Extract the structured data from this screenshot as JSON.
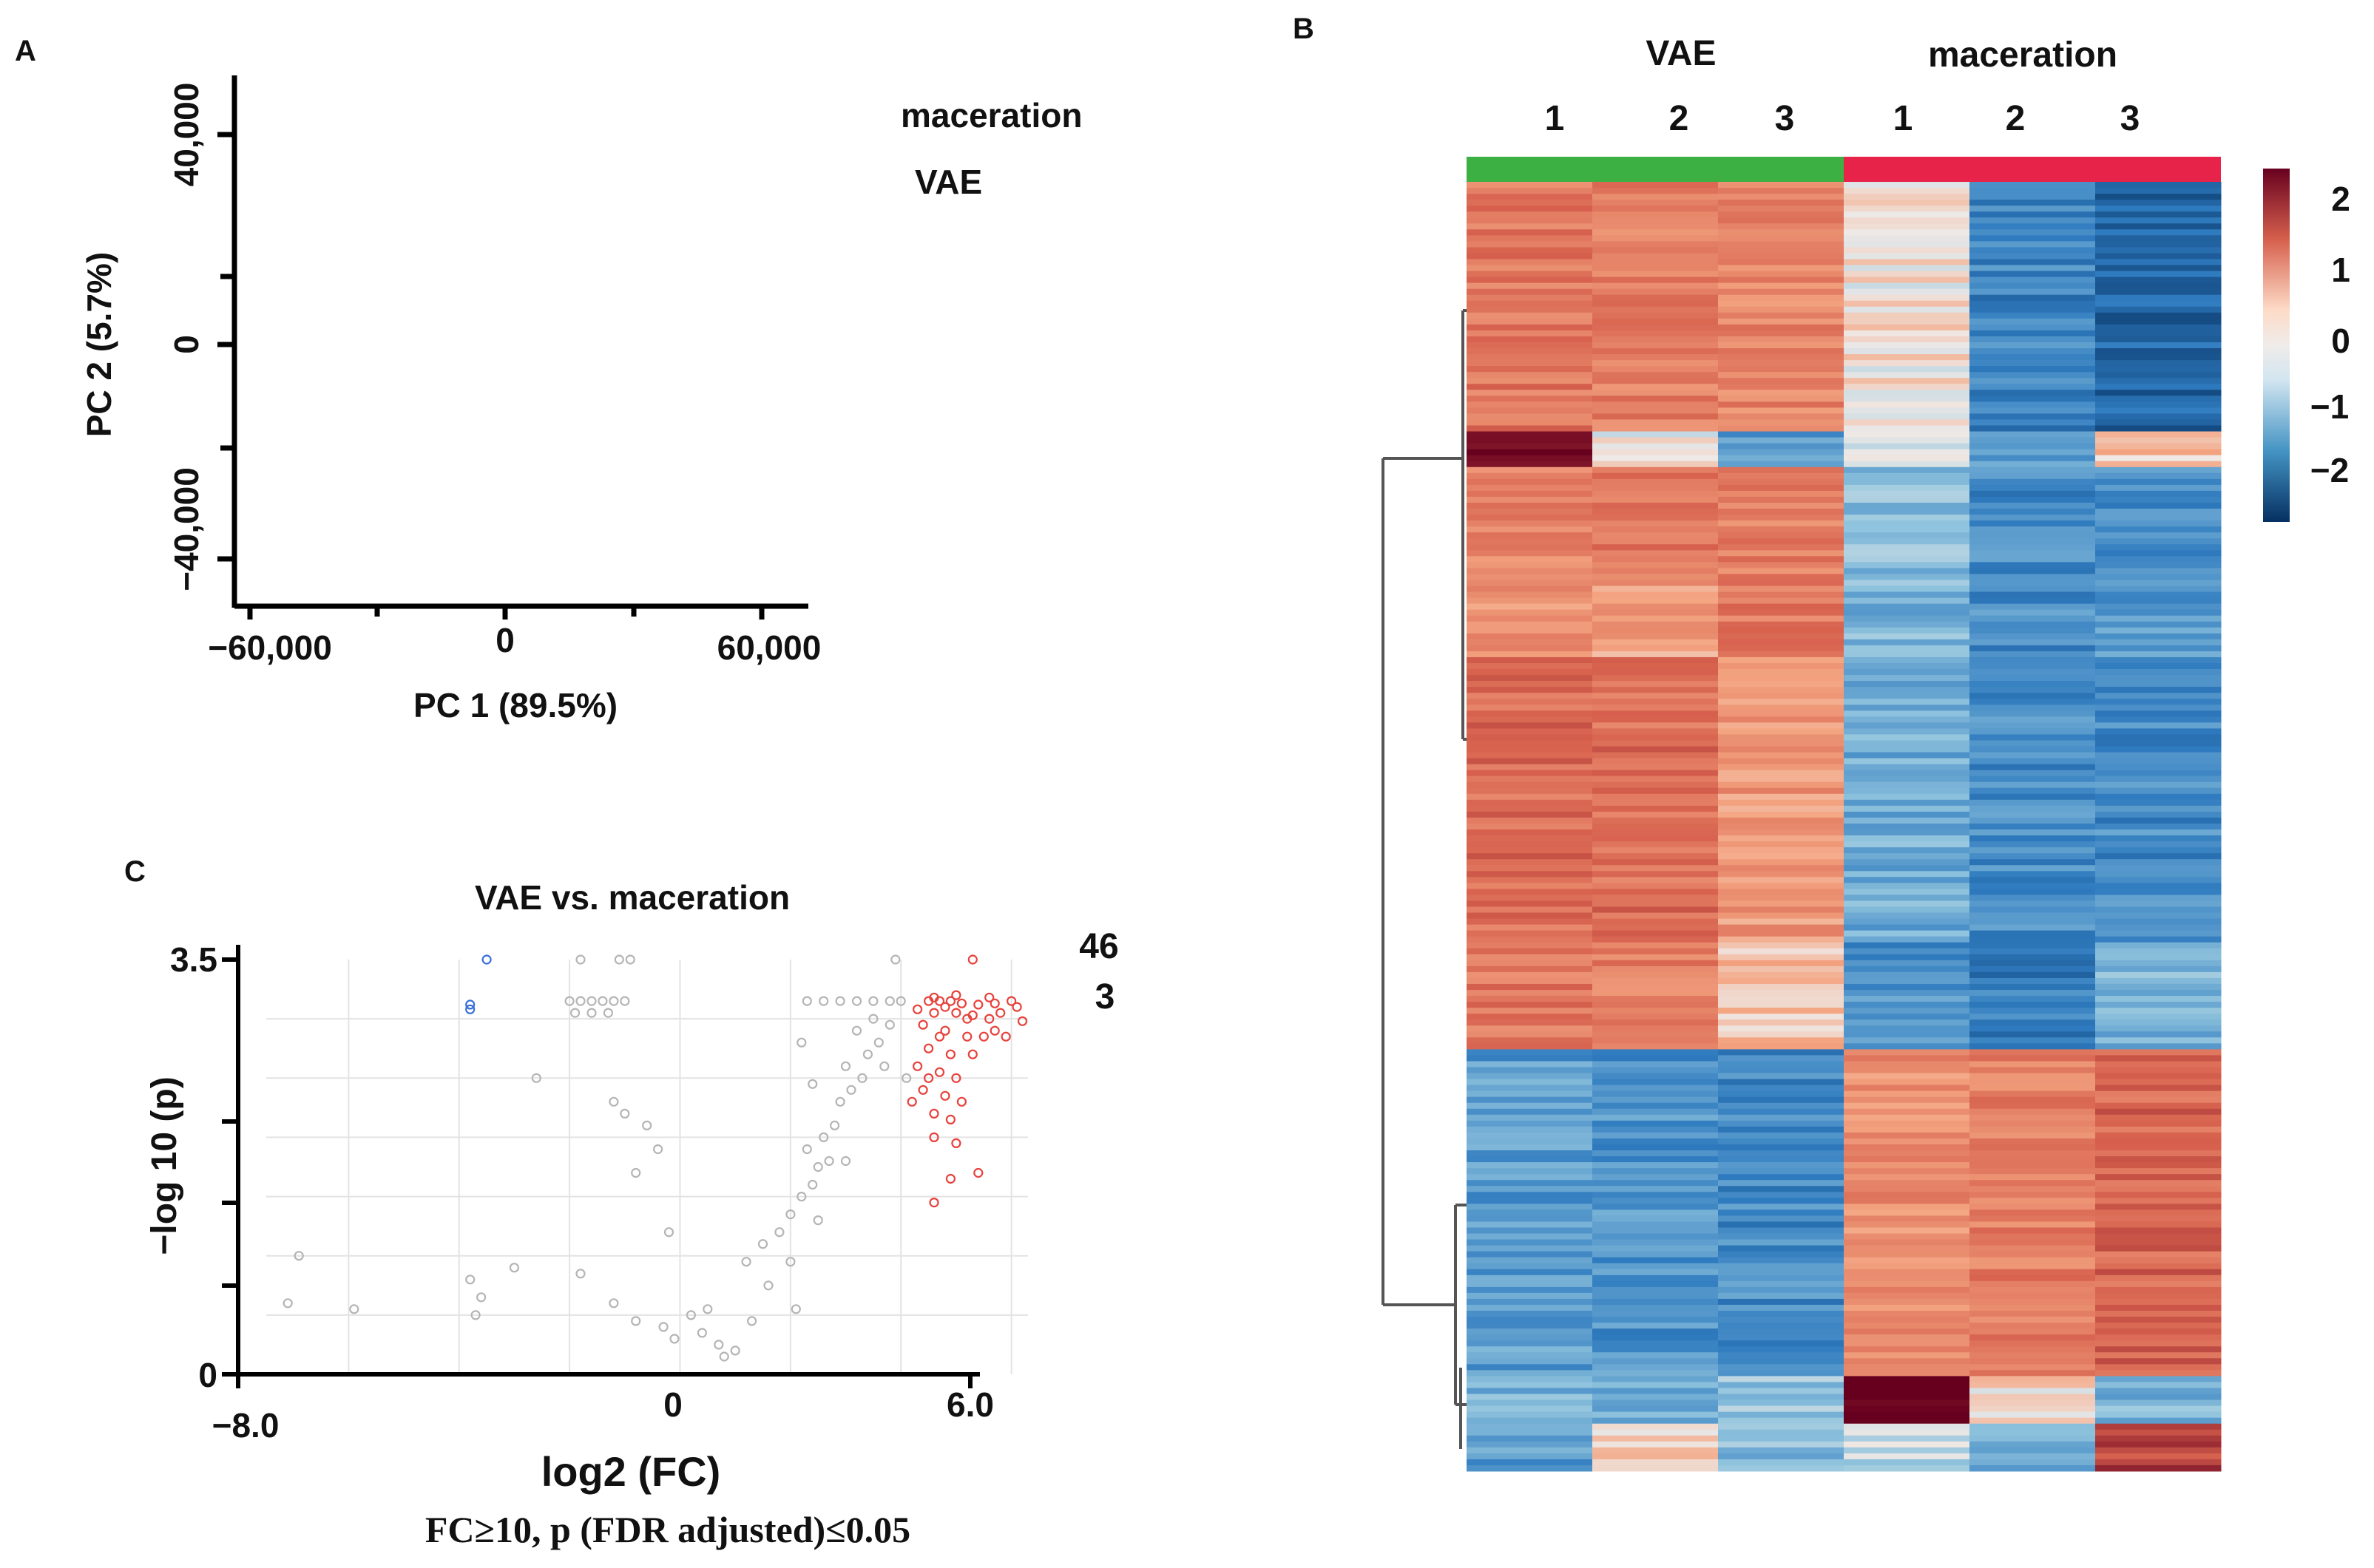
{
  "panel_labels": {
    "a": "A",
    "b": "B",
    "c": "C"
  },
  "chart_data": [
    {
      "id": "pca",
      "type": "scatter",
      "xlabel": "PC 1 (89.5%)",
      "ylabel": "PC 2 (5.7%)",
      "x_ticks": [
        "−60,000",
        "0",
        "60,000"
      ],
      "y_ticks": [
        "40,000",
        "0",
        "−40,000"
      ],
      "xlim": [
        -70000,
        70000
      ],
      "ylim": [
        -50000,
        50000
      ],
      "legend": [
        "maceration",
        "VAE"
      ],
      "points": []
    },
    {
      "id": "heatmap",
      "type": "heatmap",
      "group_labels": [
        "VAE",
        "maceration"
      ],
      "group_colors": [
        "#3cb043",
        "#e8234a"
      ],
      "sample_labels": [
        "1",
        "2",
        "3",
        "1",
        "2",
        "3"
      ],
      "colorbar_ticks": [
        "2",
        "1",
        "0",
        "−1",
        "−2"
      ],
      "color_range": [
        -2.5,
        2.5
      ],
      "row_blocks": [
        {
          "rows": 42,
          "values": [
            1.2,
            1.1,
            1.0,
            0.1,
            -1.4,
            -1.8
          ]
        },
        {
          "rows": 6,
          "values": [
            2.4,
            0.0,
            -1.2,
            -0.3,
            -1.2,
            0.3
          ]
        },
        {
          "rows": 18,
          "values": [
            1.0,
            1.3,
            1.1,
            -0.7,
            -1.3,
            -1.2
          ]
        },
        {
          "rows": 14,
          "values": [
            0.9,
            0.7,
            1.2,
            -0.8,
            -1.3,
            -1.1
          ]
        },
        {
          "rows": 48,
          "values": [
            1.3,
            1.3,
            0.8,
            -0.9,
            -1.3,
            -1.3
          ]
        },
        {
          "rows": 18,
          "values": [
            1.2,
            1.1,
            0.4,
            -1.2,
            -1.5,
            -0.8
          ]
        },
        {
          "rows": 55,
          "values": [
            -1.1,
            -1.2,
            -1.3,
            0.9,
            1.1,
            1.4
          ]
        },
        {
          "rows": 8,
          "values": [
            -0.8,
            -0.9,
            -0.6,
            2.5,
            0.2,
            -0.8
          ]
        },
        {
          "rows": 8,
          "values": [
            -1.1,
            0.2,
            -0.7,
            -0.3,
            -0.8,
            1.8
          ]
        }
      ]
    },
    {
      "id": "volcano",
      "type": "scatter",
      "title": "VAE vs. maceration",
      "xlabel": "log2 (FC)",
      "ylabel": "−log 10 (p)",
      "x_ticks": [
        "−8.0",
        "0",
        "6.0"
      ],
      "y_ticks": [
        "3.5",
        "0"
      ],
      "xlim": [
        -8,
        6.3
      ],
      "ylim": [
        0,
        3.5
      ],
      "criteria": "FC≥10, p (FDR adjusted)≤0.05",
      "counts": {
        "up": "46",
        "down": "3"
      },
      "colors": {
        "up": "#e8423c",
        "down": "#3a6fd8",
        "ns": "#b5b5b5"
      },
      "points": [
        {
          "x": -3.5,
          "y": 3.5,
          "g": "down"
        },
        {
          "x": -3.8,
          "y": 3.12,
          "g": "down"
        },
        {
          "x": -3.8,
          "y": 3.08,
          "g": "down"
        },
        {
          "x": -1.8,
          "y": 3.5,
          "g": "ns"
        },
        {
          "x": -1.1,
          "y": 3.5,
          "g": "ns"
        },
        {
          "x": -0.9,
          "y": 3.5,
          "g": "ns"
        },
        {
          "x": -2.0,
          "y": 3.15,
          "g": "ns"
        },
        {
          "x": -1.8,
          "y": 3.15,
          "g": "ns"
        },
        {
          "x": -1.6,
          "y": 3.15,
          "g": "ns"
        },
        {
          "x": -1.4,
          "y": 3.15,
          "g": "ns"
        },
        {
          "x": -1.2,
          "y": 3.15,
          "g": "ns"
        },
        {
          "x": -1.0,
          "y": 3.15,
          "g": "ns"
        },
        {
          "x": -1.9,
          "y": 3.05,
          "g": "ns"
        },
        {
          "x": -1.6,
          "y": 3.05,
          "g": "ns"
        },
        {
          "x": -1.3,
          "y": 3.05,
          "g": "ns"
        },
        {
          "x": -2.6,
          "y": 2.5,
          "g": "ns"
        },
        {
          "x": -1.2,
          "y": 2.3,
          "g": "ns"
        },
        {
          "x": -1.0,
          "y": 2.2,
          "g": "ns"
        },
        {
          "x": -0.6,
          "y": 2.1,
          "g": "ns"
        },
        {
          "x": -0.4,
          "y": 1.9,
          "g": "ns"
        },
        {
          "x": -0.8,
          "y": 1.7,
          "g": "ns"
        },
        {
          "x": -0.2,
          "y": 1.2,
          "g": "ns"
        },
        {
          "x": -6.9,
          "y": 1.0,
          "g": "ns"
        },
        {
          "x": -3.8,
          "y": 0.8,
          "g": "ns"
        },
        {
          "x": -3.0,
          "y": 0.9,
          "g": "ns"
        },
        {
          "x": -1.8,
          "y": 0.85,
          "g": "ns"
        },
        {
          "x": -7.1,
          "y": 0.6,
          "g": "ns"
        },
        {
          "x": -5.9,
          "y": 0.55,
          "g": "ns"
        },
        {
          "x": -3.6,
          "y": 0.65,
          "g": "ns"
        },
        {
          "x": -3.7,
          "y": 0.5,
          "g": "ns"
        },
        {
          "x": -1.2,
          "y": 0.6,
          "g": "ns"
        },
        {
          "x": -0.8,
          "y": 0.45,
          "g": "ns"
        },
        {
          "x": -0.3,
          "y": 0.4,
          "g": "ns"
        },
        {
          "x": -0.1,
          "y": 0.3,
          "g": "ns"
        },
        {
          "x": 0.2,
          "y": 0.5,
          "g": "ns"
        },
        {
          "x": 0.4,
          "y": 0.35,
          "g": "ns"
        },
        {
          "x": 0.5,
          "y": 0.55,
          "g": "ns"
        },
        {
          "x": 0.7,
          "y": 0.25,
          "g": "ns"
        },
        {
          "x": 0.8,
          "y": 0.15,
          "g": "ns"
        },
        {
          "x": 1.0,
          "y": 0.2,
          "g": "ns"
        },
        {
          "x": 1.3,
          "y": 0.45,
          "g": "ns"
        },
        {
          "x": 1.6,
          "y": 0.75,
          "g": "ns"
        },
        {
          "x": 2.1,
          "y": 0.55,
          "g": "ns"
        },
        {
          "x": 1.2,
          "y": 0.95,
          "g": "ns"
        },
        {
          "x": 1.5,
          "y": 1.1,
          "g": "ns"
        },
        {
          "x": 1.8,
          "y": 1.2,
          "g": "ns"
        },
        {
          "x": 2.0,
          "y": 1.35,
          "g": "ns"
        },
        {
          "x": 2.2,
          "y": 1.5,
          "g": "ns"
        },
        {
          "x": 2.4,
          "y": 1.6,
          "g": "ns"
        },
        {
          "x": 2.5,
          "y": 1.75,
          "g": "ns"
        },
        {
          "x": 2.3,
          "y": 1.9,
          "g": "ns"
        },
        {
          "x": 2.6,
          "y": 2.0,
          "g": "ns"
        },
        {
          "x": 2.8,
          "y": 2.1,
          "g": "ns"
        },
        {
          "x": 2.7,
          "y": 1.8,
          "g": "ns"
        },
        {
          "x": 3.0,
          "y": 1.8,
          "g": "ns"
        },
        {
          "x": 2.9,
          "y": 2.3,
          "g": "ns"
        },
        {
          "x": 3.1,
          "y": 2.4,
          "g": "ns"
        },
        {
          "x": 3.3,
          "y": 2.5,
          "g": "ns"
        },
        {
          "x": 3.0,
          "y": 2.6,
          "g": "ns"
        },
        {
          "x": 3.4,
          "y": 2.7,
          "g": "ns"
        },
        {
          "x": 3.6,
          "y": 2.8,
          "g": "ns"
        },
        {
          "x": 3.2,
          "y": 2.9,
          "g": "ns"
        },
        {
          "x": 3.8,
          "y": 2.95,
          "g": "ns"
        },
        {
          "x": 3.5,
          "y": 3.0,
          "g": "ns"
        },
        {
          "x": 2.3,
          "y": 3.15,
          "g": "ns"
        },
        {
          "x": 2.6,
          "y": 3.15,
          "g": "ns"
        },
        {
          "x": 2.9,
          "y": 3.15,
          "g": "ns"
        },
        {
          "x": 3.2,
          "y": 3.15,
          "g": "ns"
        },
        {
          "x": 3.5,
          "y": 3.15,
          "g": "ns"
        },
        {
          "x": 3.8,
          "y": 3.15,
          "g": "ns"
        },
        {
          "x": 4.0,
          "y": 3.15,
          "g": "ns"
        },
        {
          "x": 3.9,
          "y": 3.5,
          "g": "ns"
        },
        {
          "x": 2.2,
          "y": 2.8,
          "g": "ns"
        },
        {
          "x": 3.7,
          "y": 2.6,
          "g": "ns"
        },
        {
          "x": 4.1,
          "y": 2.5,
          "g": "ns"
        },
        {
          "x": 2.5,
          "y": 1.3,
          "g": "ns"
        },
        {
          "x": 2.0,
          "y": 0.95,
          "g": "ns"
        },
        {
          "x": 2.4,
          "y": 2.45,
          "g": "ns"
        },
        {
          "x": 4.5,
          "y": 3.15,
          "g": "up"
        },
        {
          "x": 4.7,
          "y": 3.15,
          "g": "up"
        },
        {
          "x": 4.9,
          "y": 3.15,
          "g": "up"
        },
        {
          "x": 5.1,
          "y": 3.13,
          "g": "up"
        },
        {
          "x": 5.4,
          "y": 3.12,
          "g": "up"
        },
        {
          "x": 5.7,
          "y": 3.13,
          "g": "up"
        },
        {
          "x": 6.0,
          "y": 3.15,
          "g": "up"
        },
        {
          "x": 4.6,
          "y": 3.05,
          "g": "up"
        },
        {
          "x": 5.0,
          "y": 3.05,
          "g": "up"
        },
        {
          "x": 5.3,
          "y": 3.03,
          "g": "up"
        },
        {
          "x": 5.8,
          "y": 3.05,
          "g": "up"
        },
        {
          "x": 6.2,
          "y": 2.98,
          "g": "up"
        },
        {
          "x": 4.4,
          "y": 2.95,
          "g": "up"
        },
        {
          "x": 4.8,
          "y": 2.9,
          "g": "up"
        },
        {
          "x": 5.2,
          "y": 2.85,
          "g": "up"
        },
        {
          "x": 5.5,
          "y": 2.85,
          "g": "up"
        },
        {
          "x": 5.9,
          "y": 2.85,
          "g": "up"
        },
        {
          "x": 4.5,
          "y": 2.75,
          "g": "up"
        },
        {
          "x": 4.9,
          "y": 2.7,
          "g": "up"
        },
        {
          "x": 4.3,
          "y": 2.6,
          "g": "up"
        },
        {
          "x": 4.7,
          "y": 2.55,
          "g": "up"
        },
        {
          "x": 5.0,
          "y": 2.5,
          "g": "up"
        },
        {
          "x": 4.4,
          "y": 2.4,
          "g": "up"
        },
        {
          "x": 4.8,
          "y": 2.35,
          "g": "up"
        },
        {
          "x": 5.1,
          "y": 2.3,
          "g": "up"
        },
        {
          "x": 4.6,
          "y": 2.2,
          "g": "up"
        },
        {
          "x": 4.9,
          "y": 2.15,
          "g": "up"
        },
        {
          "x": 4.6,
          "y": 2.0,
          "g": "up"
        },
        {
          "x": 5.0,
          "y": 1.95,
          "g": "up"
        },
        {
          "x": 5.4,
          "y": 1.7,
          "g": "up"
        },
        {
          "x": 4.9,
          "y": 1.65,
          "g": "up"
        },
        {
          "x": 4.6,
          "y": 1.45,
          "g": "up"
        },
        {
          "x": 5.3,
          "y": 3.5,
          "g": "up"
        },
        {
          "x": 4.6,
          "y": 3.18,
          "g": "up"
        },
        {
          "x": 5.6,
          "y": 3.18,
          "g": "up"
        },
        {
          "x": 5.0,
          "y": 3.2,
          "g": "up"
        },
        {
          "x": 5.2,
          "y": 3.0,
          "g": "up"
        },
        {
          "x": 5.6,
          "y": 3.0,
          "g": "up"
        },
        {
          "x": 6.1,
          "y": 3.1,
          "g": "up"
        },
        {
          "x": 4.3,
          "y": 3.08,
          "g": "up"
        },
        {
          "x": 5.7,
          "y": 2.9,
          "g": "up"
        },
        {
          "x": 4.5,
          "y": 2.5,
          "g": "up"
        },
        {
          "x": 4.7,
          "y": 2.85,
          "g": "up"
        },
        {
          "x": 5.3,
          "y": 2.7,
          "g": "up"
        },
        {
          "x": 4.2,
          "y": 2.3,
          "g": "up"
        },
        {
          "x": 4.8,
          "y": 3.1,
          "g": "up"
        }
      ]
    }
  ]
}
